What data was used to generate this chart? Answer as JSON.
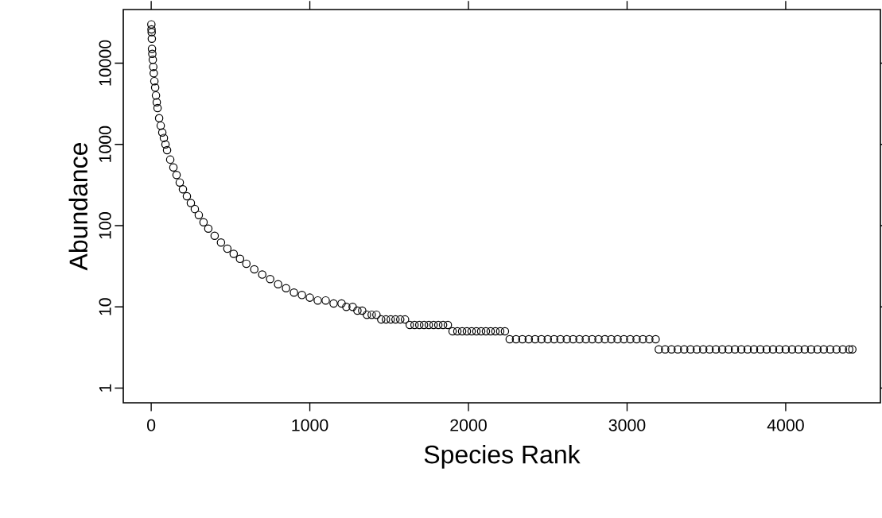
{
  "chart_data": {
    "type": "scatter",
    "xlabel": "Species Rank",
    "ylabel": "Abundance",
    "log": "y",
    "marker": "circle",
    "color": "#000000",
    "xlim": [
      -176,
      4597
    ],
    "ylim": [
      0.66,
      45700
    ],
    "xticks": [
      0,
      1000,
      2000,
      3000,
      4000
    ],
    "yticks": [
      1,
      10,
      100,
      1000,
      10000
    ],
    "x": [
      1,
      2,
      3,
      4,
      5,
      7,
      10,
      13,
      16,
      20,
      25,
      30,
      35,
      40,
      50,
      60,
      70,
      80,
      90,
      100,
      120,
      140,
      160,
      180,
      200,
      225,
      250,
      275,
      300,
      330,
      360,
      400,
      440,
      480,
      520,
      560,
      600,
      650,
      700,
      750,
      800,
      850,
      900,
      950,
      1000,
      1050,
      1100,
      1150,
      1200,
      1230,
      1270,
      1300,
      1330,
      1360,
      1390,
      1420,
      1450,
      1480,
      1510,
      1540,
      1570,
      1600,
      1630,
      1660,
      1690,
      1720,
      1750,
      1780,
      1810,
      1840,
      1870,
      1900,
      1930,
      1960,
      1990,
      2020,
      2050,
      2080,
      2110,
      2140,
      2170,
      2200,
      2230,
      2260,
      2300,
      2340,
      2380,
      2420,
      2460,
      2500,
      2540,
      2580,
      2620,
      2660,
      2700,
      2740,
      2780,
      2820,
      2860,
      2900,
      2940,
      2980,
      3020,
      3060,
      3100,
      3140,
      3180,
      3200,
      3240,
      3280,
      3320,
      3360,
      3400,
      3440,
      3480,
      3520,
      3560,
      3600,
      3640,
      3680,
      3720,
      3760,
      3800,
      3840,
      3880,
      3920,
      3960,
      4000,
      4040,
      4080,
      4120,
      4160,
      4200,
      4240,
      4280,
      4320,
      4360,
      4400,
      4420
    ],
    "values": [
      30000,
      26000,
      24000,
      20000,
      15000,
      13000,
      11000,
      9000,
      7500,
      6000,
      5000,
      4000,
      3300,
      2800,
      2100,
      1700,
      1400,
      1200,
      1000,
      850,
      650,
      520,
      420,
      340,
      280,
      230,
      190,
      160,
      135,
      110,
      92,
      75,
      62,
      52,
      45,
      39,
      34,
      29,
      25,
      22,
      19,
      17,
      15,
      14,
      13,
      12,
      12,
      11,
      11,
      10,
      10,
      9,
      9,
      8,
      8,
      8,
      7,
      7,
      7,
      7,
      7,
      7,
      6,
      6,
      6,
      6,
      6,
      6,
      6,
      6,
      6,
      5,
      5,
      5,
      5,
      5,
      5,
      5,
      5,
      5,
      5,
      5,
      5,
      4,
      4,
      4,
      4,
      4,
      4,
      4,
      4,
      4,
      4,
      4,
      4,
      4,
      4,
      4,
      4,
      4,
      4,
      4,
      4,
      4,
      4,
      4,
      4,
      3,
      3,
      3,
      3,
      3,
      3,
      3,
      3,
      3,
      3,
      3,
      3,
      3,
      3,
      3,
      3,
      3,
      3,
      3,
      3,
      3,
      3,
      3,
      3,
      3,
      3,
      3,
      3,
      3,
      3,
      3,
      3
    ]
  }
}
